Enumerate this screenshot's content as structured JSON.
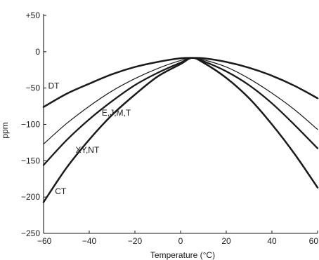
{
  "chart_data": {
    "type": "line",
    "xlabel": "Temperature (°C)",
    "ylabel": "ppm",
    "xlim": [
      -60,
      60
    ],
    "ylim": [
      -250,
      50
    ],
    "x_ticks": [
      -60,
      -40,
      -20,
      0,
      20,
      40,
      60
    ],
    "x_tick_labels": [
      "−60",
      "−40",
      "−20",
      "0",
      "20",
      "40",
      "60"
    ],
    "y_ticks": [
      50,
      0,
      -50,
      -100,
      -150,
      -200,
      -250
    ],
    "y_tick_labels": [
      "+50",
      "0",
      "−50",
      "−100",
      "−150",
      "−200",
      "−250"
    ],
    "grid": false,
    "series": [
      {
        "name": "DT",
        "x": [
          -60,
          -50,
          -40,
          -30,
          -20,
          -10,
          0,
          5,
          10,
          20,
          30,
          40,
          50,
          60
        ],
        "values": [
          -76,
          -58,
          -44,
          -31,
          -21,
          -14,
          -9,
          -8.5,
          -9,
          -14,
          -22,
          -33,
          -47,
          -64
        ],
        "stroke_width": 2.5
      },
      {
        "name": "",
        "x": [
          -60,
          -50,
          -40,
          -30,
          -20,
          -10,
          0,
          5,
          10,
          20,
          30,
          40,
          50,
          60
        ],
        "values": [
          -127,
          -99,
          -75,
          -54,
          -37,
          -23,
          -12,
          -8.5,
          -11,
          -21,
          -37,
          -57,
          -80,
          -107
        ],
        "stroke_width": 1.2
      },
      {
        "name": "E,J,M,T",
        "x": [
          -60,
          -50,
          -40,
          -30,
          -20,
          -10,
          0,
          5,
          10,
          20,
          30,
          40,
          50,
          60
        ],
        "values": [
          -156,
          -122,
          -93,
          -68,
          -46,
          -29,
          -15,
          -8.5,
          -13,
          -27,
          -46,
          -71,
          -101,
          -133
        ],
        "stroke_width": 2.3
      },
      {
        "name": "CT",
        "x": [
          -60,
          -50,
          -40,
          -30,
          -20,
          -10,
          0,
          5,
          10,
          20,
          30,
          40,
          50,
          60
        ],
        "values": [
          -207,
          -160,
          -121,
          -87,
          -59,
          -34,
          -17,
          -8.5,
          -15,
          -36,
          -64,
          -100,
          -141,
          -187
        ],
        "stroke_width": 2.5
      }
    ],
    "labels": [
      {
        "text": "DT",
        "x": -58,
        "y": -51
      },
      {
        "text": "E,J,M,T",
        "x": -34.5,
        "y": -88
      },
      {
        "text": "XY,NT",
        "x": -46,
        "y": -139
      },
      {
        "text": "CT",
        "x": -55,
        "y": -196
      }
    ]
  }
}
